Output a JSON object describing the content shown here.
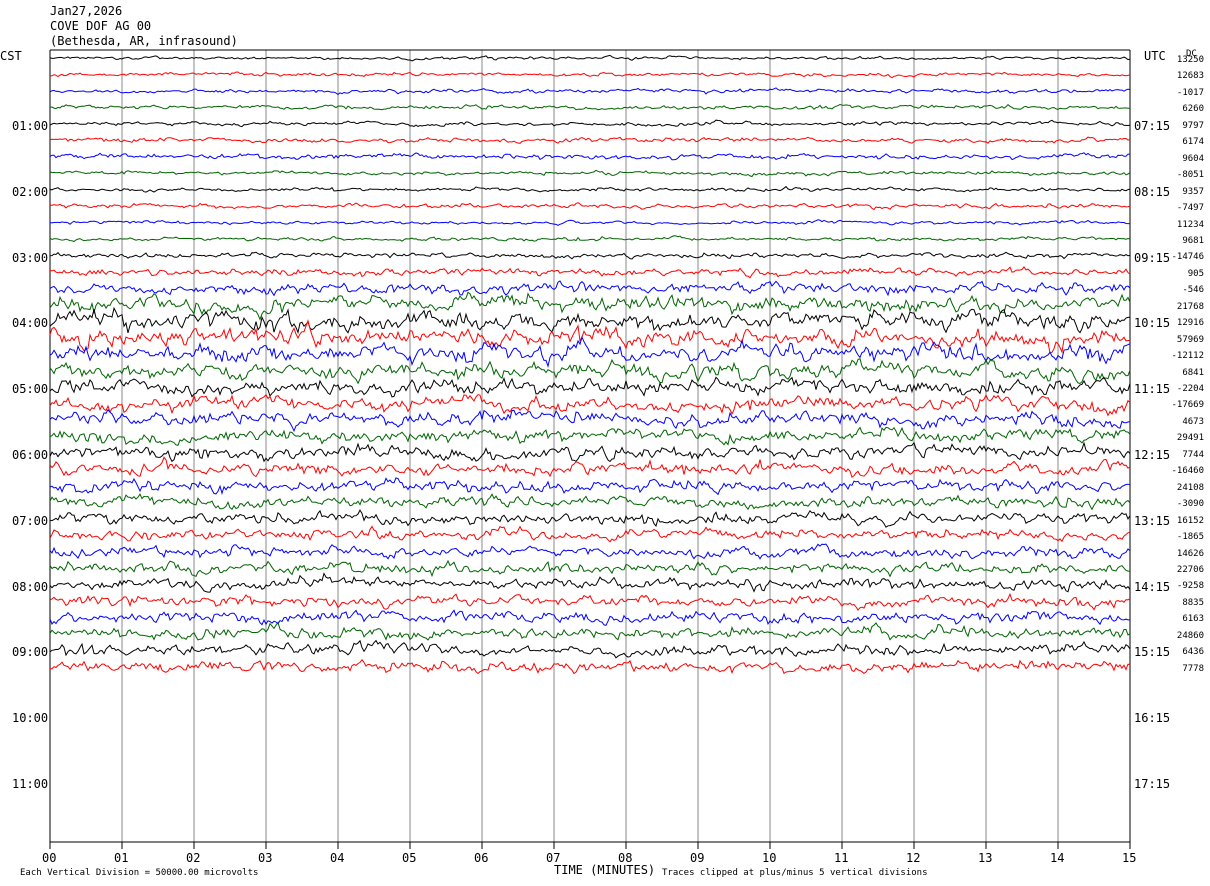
{
  "header": {
    "date": "Jan27,2026",
    "station": "COVE DOF AG 00",
    "location": "(Bethesda, AR, infrasound)"
  },
  "chart_data": {
    "type": "line",
    "left_axis_label": "CST",
    "right_axis_label": "UTC",
    "dc_label": "DC",
    "xlabel": "TIME (MINUTES)",
    "xlim": [
      0,
      15
    ],
    "x_ticks": [
      "00",
      "01",
      "02",
      "03",
      "04",
      "05",
      "06",
      "07",
      "08",
      "09",
      "10",
      "11",
      "12",
      "13",
      "14",
      "15"
    ],
    "rows_per_hour": 4,
    "left_hour_labels": [
      "01:00",
      "02:00",
      "03:00",
      "04:00",
      "05:00",
      "06:00",
      "07:00",
      "08:00",
      "09:00",
      "10:00",
      "11:00"
    ],
    "right_hour_labels": [
      "07:15",
      "08:15",
      "09:15",
      "10:15",
      "11:15",
      "12:15",
      "13:15",
      "14:15",
      "15:15",
      "16:15",
      "17:15"
    ],
    "trace_colors": [
      "#000000",
      "#ff0000",
      "#0000ff",
      "#006400"
    ],
    "dc_offsets": [
      "13250",
      "12683",
      "-1017",
      "6260",
      "9797",
      "6174",
      "9604",
      "-8051",
      "9357",
      "-7497",
      "11234",
      "9681",
      "-14746",
      "905",
      "-546",
      "21768",
      "12916",
      "57969",
      "-12112",
      "6841",
      "-2204",
      "-17669",
      "4673",
      "29491",
      "7744",
      "-16460",
      "24108",
      "-3090",
      "16152",
      "-1865",
      "14626",
      "22706",
      "-9258",
      "8835",
      "6163",
      "24860",
      "6436",
      "7778"
    ],
    "trace_amplitude_divisions": [
      0.5,
      0.6,
      0.6,
      0.6,
      0.6,
      0.7,
      0.8,
      0.6,
      0.6,
      0.7,
      0.5,
      0.6,
      0.8,
      1.2,
      1.8,
      2.6,
      2.8,
      3.0,
      2.8,
      2.6,
      2.4,
      2.3,
      2.2,
      2.2,
      2.1,
      2.0,
      1.9,
      1.8,
      1.8,
      1.7,
      1.7,
      1.7,
      1.7,
      1.7,
      1.8,
      1.8,
      1.8,
      1.8
    ],
    "notes": {
      "vertical_division": "Each Vertical Division = 50000.00 microvolts",
      "clipping": "Traces clipped at plus/minus 5 vertical divisions"
    }
  }
}
